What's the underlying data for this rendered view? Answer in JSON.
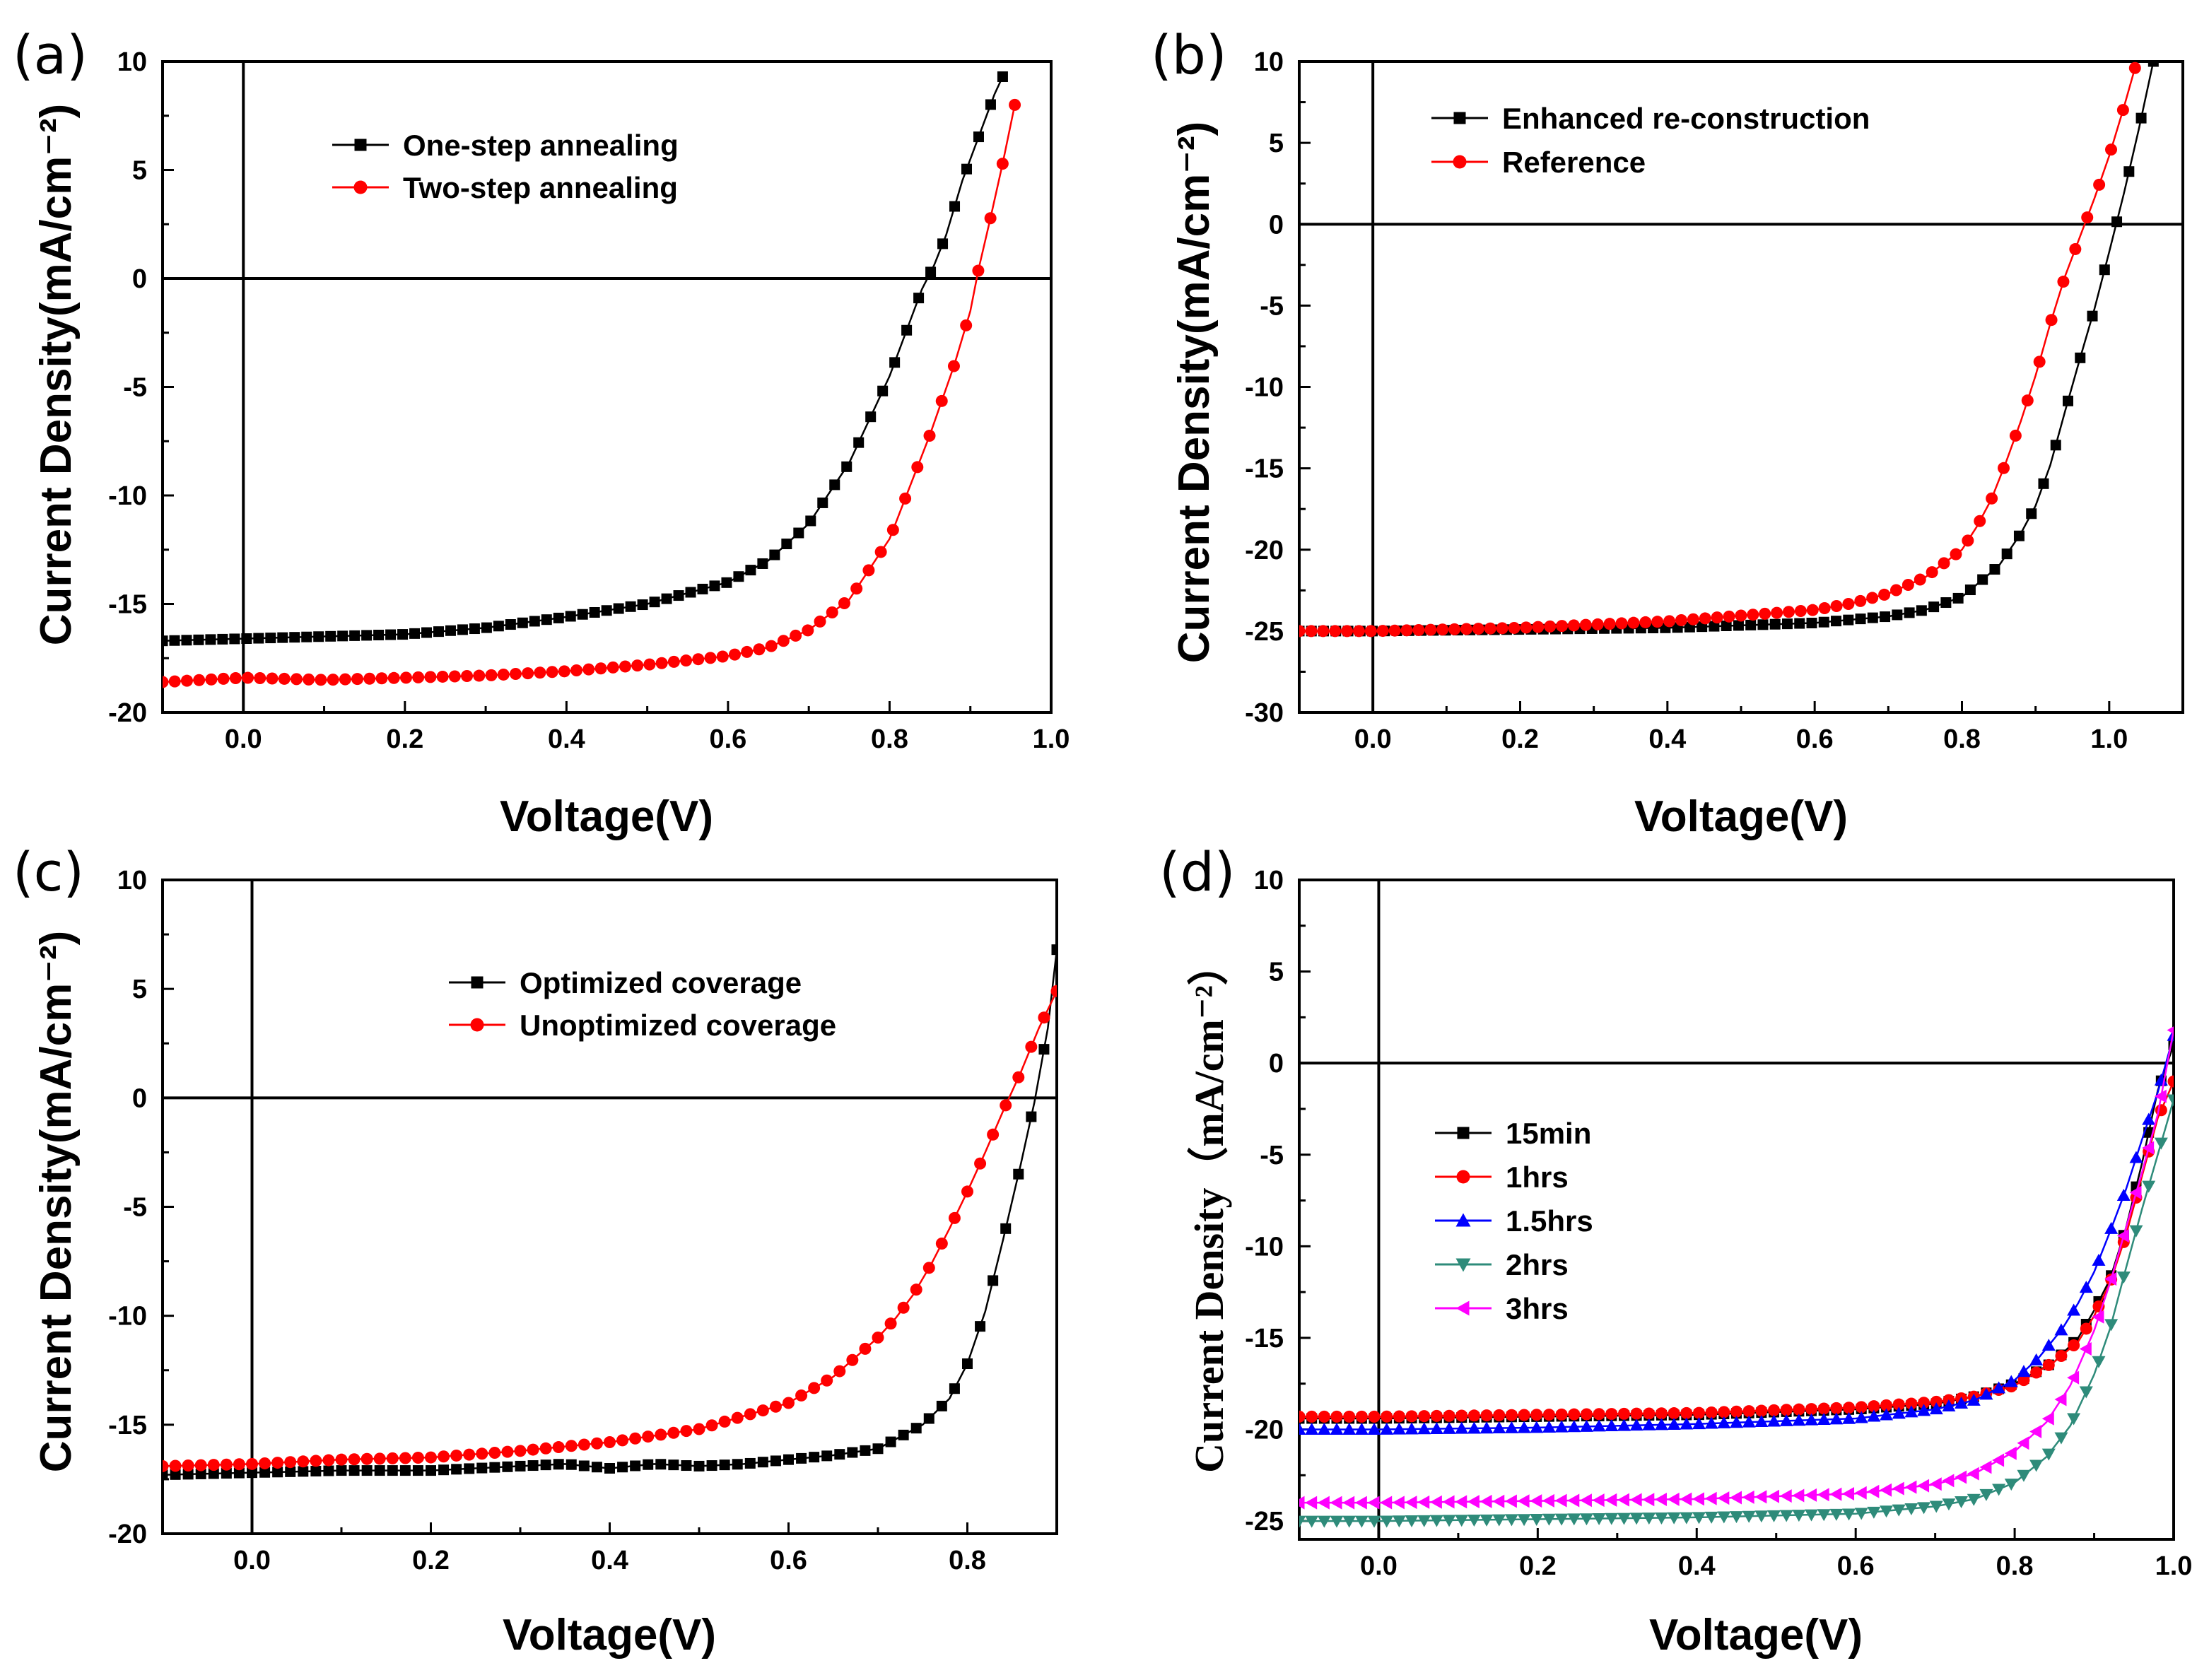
{
  "figure": {
    "panel_labels": [
      "(a)",
      "(b)",
      "(c)",
      "(d)"
    ]
  },
  "chart_data": [
    {
      "type": "line",
      "panel": "(a)",
      "title": "",
      "xlabel": "Voltage(V)",
      "ylabel": "Current Density(mA/cm⁻²)",
      "xlim": [
        -0.1,
        1.0
      ],
      "ylim": [
        -20,
        10
      ],
      "xticks": [
        0.0,
        0.2,
        0.4,
        0.6,
        0.8,
        1.0
      ],
      "xtick_labels": [
        "0.0",
        "0.2",
        "0.4",
        "0.6",
        "0.8",
        "1.0"
      ],
      "yticks": [
        -20,
        -15,
        -10,
        -5,
        0,
        5,
        10
      ],
      "ytick_labels": [
        "-20",
        "-15",
        "-10",
        "-5",
        "0",
        "5",
        "10"
      ],
      "legend_position": "upper-center",
      "series": [
        {
          "name": "One-step annealing",
          "color": "#000000",
          "marker": "square",
          "x": [
            -0.1,
            0.0,
            0.1,
            0.2,
            0.3,
            0.4,
            0.5,
            0.6,
            0.65,
            0.7,
            0.75,
            0.8,
            0.82,
            0.84,
            0.855,
            0.87,
            0.89,
            0.91,
            0.93,
            0.94
          ],
          "y": [
            -16.7,
            -16.6,
            -16.5,
            -16.4,
            -16.1,
            -15.6,
            -15.0,
            -14.0,
            -13.0,
            -11.3,
            -8.5,
            -4.5,
            -2.5,
            -0.5,
            0.6,
            2.0,
            4.5,
            6.5,
            8.5,
            9.3
          ]
        },
        {
          "name": "Two-step annealing",
          "color": "#ff0000",
          "marker": "circle",
          "x": [
            -0.1,
            0.0,
            0.1,
            0.2,
            0.3,
            0.4,
            0.5,
            0.6,
            0.65,
            0.7,
            0.75,
            0.8,
            0.85,
            0.88,
            0.9,
            0.91,
            0.925,
            0.94,
            0.955
          ],
          "y": [
            -18.6,
            -18.4,
            -18.5,
            -18.4,
            -18.3,
            -18.1,
            -17.8,
            -17.4,
            -17.0,
            -16.2,
            -14.8,
            -12.0,
            -7.2,
            -4.0,
            -1.5,
            0.4,
            2.8,
            5.3,
            8.0
          ]
        }
      ]
    },
    {
      "type": "line",
      "panel": "(b)",
      "title": "",
      "xlabel": "Voltage(V)",
      "ylabel": "Current Density(mA/cm⁻²)",
      "xlim": [
        -0.1,
        1.1
      ],
      "ylim": [
        -30,
        10
      ],
      "xticks": [
        0.0,
        0.2,
        0.4,
        0.6,
        0.8,
        1.0
      ],
      "xtick_labels": [
        "0.0",
        "0.2",
        "0.4",
        "0.6",
        "0.8",
        "1.0"
      ],
      "yticks": [
        -30,
        -25,
        -20,
        -15,
        -10,
        -5,
        0,
        5,
        10
      ],
      "ytick_labels": [
        "-30",
        "-25",
        "-20",
        "-15",
        "-10",
        "-5",
        "0",
        "5",
        "10"
      ],
      "legend_position": "upper-left",
      "series": [
        {
          "name": "Enhanced re-construction",
          "color": "#000000",
          "marker": "square",
          "x": [
            -0.1,
            0.0,
            0.2,
            0.4,
            0.6,
            0.7,
            0.75,
            0.8,
            0.85,
            0.88,
            0.9,
            0.92,
            0.94,
            0.96,
            0.98,
            1.0,
            1.02,
            1.04,
            1.06
          ],
          "y": [
            -25.0,
            -25.0,
            -24.9,
            -24.8,
            -24.5,
            -24.1,
            -23.7,
            -22.9,
            -21.0,
            -19.0,
            -17.3,
            -14.8,
            -11.5,
            -8.3,
            -5.2,
            -1.7,
            1.9,
            5.8,
            10.0
          ]
        },
        {
          "name": "Reference",
          "color": "#ff0000",
          "marker": "circle",
          "x": [
            -0.1,
            0.0,
            0.2,
            0.4,
            0.6,
            0.65,
            0.7,
            0.75,
            0.8,
            0.82,
            0.84,
            0.86,
            0.88,
            0.9,
            0.92,
            0.94,
            0.96,
            0.98,
            1.0,
            1.02,
            1.035
          ],
          "y": [
            -25.0,
            -25.0,
            -24.8,
            -24.4,
            -23.7,
            -23.3,
            -22.7,
            -21.7,
            -20.0,
            -18.6,
            -16.9,
            -14.6,
            -12.1,
            -9.3,
            -6.1,
            -3.2,
            -0.8,
            1.6,
            4.2,
            7.2,
            9.6
          ]
        }
      ]
    },
    {
      "type": "line",
      "panel": "(c)",
      "title": "",
      "xlabel": "Voltage(V)",
      "ylabel": "Current Density(mA/cm⁻²)",
      "xlim": [
        -0.1,
        0.9
      ],
      "ylim": [
        -20,
        10
      ],
      "xticks": [
        0.0,
        0.2,
        0.4,
        0.6,
        0.8
      ],
      "xtick_labels": [
        "0.0",
        "0.2",
        "0.4",
        "0.6",
        "0.8"
      ],
      "yticks": [
        -20,
        -15,
        -10,
        -5,
        0,
        5,
        10
      ],
      "ytick_labels": [
        "-20",
        "-15",
        "-10",
        "-5",
        "0",
        "5",
        "10"
      ],
      "legend_position": "upper-center",
      "series": [
        {
          "name": "Optimized coverage",
          "color": "#000000",
          "marker": "square",
          "x": [
            -0.1,
            0.0,
            0.1,
            0.2,
            0.3,
            0.35,
            0.4,
            0.45,
            0.5,
            0.55,
            0.6,
            0.65,
            0.7,
            0.75,
            0.78,
            0.8,
            0.82,
            0.84,
            0.86,
            0.875,
            0.89,
            0.9
          ],
          "y": [
            -17.3,
            -17.2,
            -17.1,
            -17.1,
            -16.9,
            -16.8,
            -17.0,
            -16.8,
            -16.9,
            -16.8,
            -16.6,
            -16.4,
            -16.1,
            -15.0,
            -13.8,
            -12.2,
            -9.8,
            -6.5,
            -3.0,
            -0.2,
            3.2,
            6.8
          ]
        },
        {
          "name": "Unoptimized coverage",
          "color": "#ff0000",
          "marker": "circle",
          "x": [
            -0.1,
            0.0,
            0.1,
            0.2,
            0.3,
            0.4,
            0.5,
            0.55,
            0.6,
            0.65,
            0.7,
            0.72,
            0.74,
            0.76,
            0.78,
            0.8,
            0.82,
            0.84,
            0.86,
            0.88,
            0.9
          ],
          "y": [
            -16.9,
            -16.8,
            -16.6,
            -16.5,
            -16.2,
            -15.8,
            -15.2,
            -14.6,
            -14.0,
            -12.8,
            -11.0,
            -10.1,
            -9.0,
            -7.6,
            -6.0,
            -4.3,
            -2.5,
            -0.6,
            1.2,
            3.2,
            4.9
          ]
        }
      ]
    },
    {
      "type": "line",
      "panel": "(d)",
      "title": "",
      "xlabel": "Voltage(V)",
      "ylabel": "Current Density（mA/cm⁻²）",
      "xlim": [
        -0.1,
        1.0
      ],
      "ylim": [
        -26,
        10
      ],
      "xticks": [
        0.0,
        0.2,
        0.4,
        0.6,
        0.8,
        1.0
      ],
      "xtick_labels": [
        "0.0",
        "0.2",
        "0.4",
        "0.6",
        "0.8",
        "1.0"
      ],
      "yticks": [
        -25,
        -20,
        -15,
        -10,
        -5,
        0,
        5,
        10
      ],
      "ytick_labels": [
        "-25",
        "-20",
        "-15",
        "-10",
        "-5",
        "0",
        "5",
        "10"
      ],
      "legend_position": "center-left",
      "series": [
        {
          "name": "15min",
          "color": "#000000",
          "marker": "square",
          "x": [
            -0.1,
            0.0,
            0.2,
            0.4,
            0.6,
            0.7,
            0.75,
            0.8,
            0.85,
            0.88,
            0.9,
            0.92,
            0.94,
            0.96,
            0.98,
            1.0
          ],
          "y": [
            -19.4,
            -19.4,
            -19.3,
            -19.2,
            -18.9,
            -18.6,
            -18.2,
            -17.5,
            -16.3,
            -15.0,
            -13.5,
            -11.8,
            -9.0,
            -5.5,
            -1.5,
            1.0
          ]
        },
        {
          "name": "1hrs",
          "color": "#ff0000",
          "marker": "circle",
          "x": [
            -0.1,
            0.0,
            0.2,
            0.4,
            0.6,
            0.7,
            0.75,
            0.8,
            0.85,
            0.88,
            0.9,
            0.92,
            0.94,
            0.96,
            0.98,
            1.0
          ],
          "y": [
            -19.3,
            -19.3,
            -19.2,
            -19.1,
            -18.8,
            -18.5,
            -18.2,
            -17.6,
            -16.3,
            -15.2,
            -13.8,
            -12.0,
            -9.4,
            -6.2,
            -3.0,
            -1.0
          ]
        },
        {
          "name": "1.5hrs",
          "color": "#0000ff",
          "marker": "triangle-up",
          "x": [
            -0.1,
            0.0,
            0.2,
            0.4,
            0.6,
            0.7,
            0.75,
            0.8,
            0.83,
            0.86,
            0.88,
            0.9,
            0.92,
            0.94,
            0.96,
            0.98,
            1.0
          ],
          "y": [
            -20.0,
            -20.0,
            -19.9,
            -19.7,
            -19.4,
            -18.9,
            -18.4,
            -17.3,
            -16.1,
            -14.5,
            -13.1,
            -11.4,
            -9.2,
            -6.9,
            -4.2,
            -1.6,
            1.5
          ]
        },
        {
          "name": "2hrs",
          "color": "#2e8b7a",
          "marker": "triangle-down",
          "x": [
            -0.1,
            0.0,
            0.2,
            0.4,
            0.6,
            0.7,
            0.75,
            0.8,
            0.84,
            0.87,
            0.9,
            0.92,
            0.94,
            0.96,
            0.98,
            1.0
          ],
          "y": [
            -25.0,
            -25.0,
            -24.9,
            -24.8,
            -24.6,
            -24.2,
            -23.8,
            -22.9,
            -21.5,
            -19.8,
            -17.0,
            -14.5,
            -11.2,
            -8.0,
            -5.0,
            -2.0
          ]
        },
        {
          "name": "3hrs",
          "color": "#ff00ff",
          "marker": "triangle-left",
          "x": [
            -0.1,
            0.0,
            0.2,
            0.4,
            0.6,
            0.7,
            0.75,
            0.8,
            0.84,
            0.87,
            0.9,
            0.92,
            0.94,
            0.96,
            0.98,
            1.0
          ],
          "y": [
            -24.0,
            -24.0,
            -23.9,
            -23.8,
            -23.5,
            -23.0,
            -22.4,
            -21.2,
            -19.6,
            -17.6,
            -14.6,
            -12.0,
            -9.0,
            -6.0,
            -2.8,
            1.8
          ]
        }
      ]
    }
  ]
}
